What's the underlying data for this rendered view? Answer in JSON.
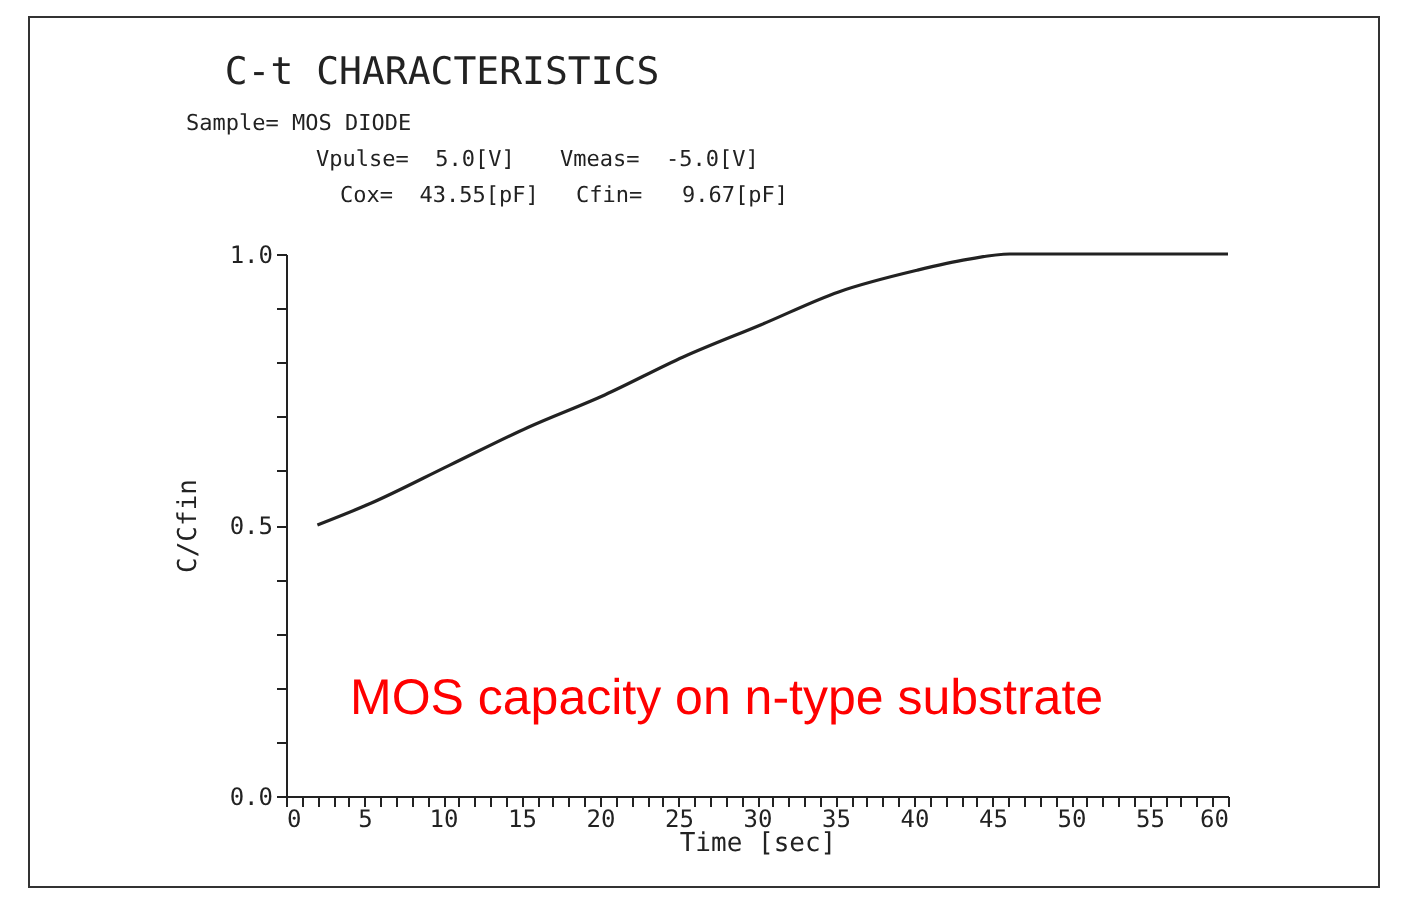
{
  "chart_data": {
    "type": "line",
    "title": "C-t CHARACTERISTICS",
    "xlabel": "Time [sec]",
    "ylabel": "C/Cfin",
    "annotations": [
      "Sample= MOS DIODE",
      "Vpulse=  5.0[V]",
      "Vmeas=  -5.0[V]",
      "Cox=  43.55[pF]",
      "Cfin=   9.67[pF]",
      "MOS capacity on n-type substrate"
    ],
    "x": [
      2,
      5.4,
      10.4,
      15.4,
      20.3,
      25.3,
      30.3,
      35.2,
      40.2,
      43.4,
      46.1,
      50.2,
      55,
      60
    ],
    "series": [
      {
        "color": "#222222",
        "values": [
          0.5,
          0.54,
          0.61,
          0.68,
          0.74,
          0.81,
          0.87,
          0.93,
          0.97,
          0.99,
          1.0,
          1.0,
          1.0,
          1.0
        ]
      }
    ],
    "xlim": [
      0,
      60
    ],
    "ylim": [
      0,
      1.0
    ],
    "xticks": [
      0,
      {
        "value": 1,
        "label": null
      },
      {
        "value": 2,
        "label": null
      },
      {
        "value": 3,
        "label": null
      },
      {
        "value": 4,
        "label": null
      },
      5,
      {
        "value": 6,
        "label": null
      },
      {
        "value": 7,
        "label": null
      },
      {
        "value": 8,
        "label": null
      },
      {
        "value": 9,
        "label": null
      },
      10,
      {
        "value": 11,
        "label": null
      },
      {
        "value": 12,
        "label": null
      },
      {
        "value": 13,
        "label": null
      },
      {
        "value": 14,
        "label": null
      },
      15,
      {
        "value": 16,
        "label": null
      },
      {
        "value": 17,
        "label": null
      },
      {
        "value": 18,
        "label": null
      },
      {
        "value": 19,
        "label": null
      },
      20,
      {
        "value": 21,
        "label": null
      },
      {
        "value": 22,
        "label": null
      },
      {
        "value": 23,
        "label": null
      },
      {
        "value": 24,
        "label": null
      },
      25,
      {
        "value": 26,
        "label": null
      },
      {
        "value": 27,
        "label": null
      },
      {
        "value": 28,
        "label": null
      },
      {
        "value": 29,
        "label": null
      },
      30,
      {
        "value": 31,
        "label": null
      },
      {
        "value": 32,
        "label": null
      },
      {
        "value": 33,
        "label": null
      },
      {
        "value": 34,
        "label": null
      },
      35,
      {
        "value": 36,
        "label": null
      },
      {
        "value": 37,
        "label": null
      },
      {
        "value": 38,
        "label": null
      },
      {
        "value": 39,
        "label": null
      },
      40,
      {
        "value": 41,
        "label": null
      },
      {
        "value": 42,
        "label": null
      },
      {
        "value": 43,
        "label": null
      },
      {
        "value": 44,
        "label": null
      },
      45,
      {
        "value": 46,
        "label": null
      },
      {
        "value": 47,
        "label": null
      },
      {
        "value": 48,
        "label": null
      },
      {
        "value": 49,
        "label": null
      },
      50,
      {
        "value": 51,
        "label": null
      },
      {
        "value": 52,
        "label": null
      },
      {
        "value": 53,
        "label": null
      },
      {
        "value": 54,
        "label": null
      },
      55,
      {
        "value": 56,
        "label": null
      },
      {
        "value": 57,
        "label": null
      },
      {
        "value": 58,
        "label": null
      },
      {
        "value": 59,
        "label": null
      },
      60
    ],
    "yticks": [
      {
        "value": 0,
        "label": "0.0"
      },
      {
        "value": 0.1,
        "label": null
      },
      {
        "value": 0.2,
        "label": null
      },
      {
        "value": 0.3,
        "label": null
      },
      {
        "value": 0.4,
        "label": null
      },
      {
        "value": 0.5,
        "label": "0.5"
      },
      {
        "value": 0.6,
        "label": null
      },
      {
        "value": 0.7,
        "label": null
      },
      {
        "value": 0.8,
        "label": null
      },
      {
        "value": 0.9,
        "label": null
      },
      {
        "value": 1.0,
        "label": "1.0"
      }
    ],
    "grid": false,
    "marker": "none",
    "line_style": "solid"
  }
}
